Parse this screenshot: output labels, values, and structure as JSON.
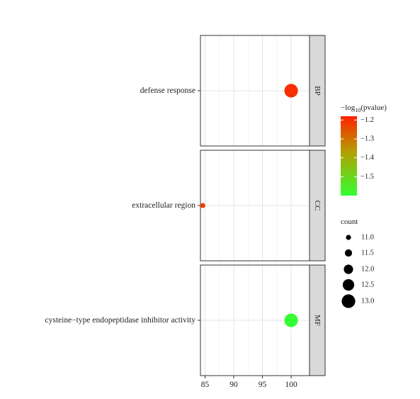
{
  "chart_data": {
    "type": "scatter",
    "title": "",
    "xlabel": "",
    "ylabel": "",
    "xlim": [
      84.2,
      103.2
    ],
    "x_ticks": [
      85,
      90,
      95,
      100
    ],
    "grid": true,
    "panels": [
      {
        "strip": "BP",
        "category": "defense response",
        "x": 100,
        "count": 13.0,
        "neg_log10_pvalue": -1.2
      },
      {
        "strip": "CC",
        "category": "extracellular region",
        "x": 84.6,
        "count": 11.0,
        "neg_log10_pvalue": -1.22
      },
      {
        "strip": "MF",
        "category": "cysteine−type endopeptidase inhibitor activity",
        "x": 100,
        "count": 13.0,
        "neg_log10_pvalue": -1.6
      }
    ],
    "legend": {
      "placement": "right",
      "color": {
        "title_prefix": "−log",
        "title_sub": "10",
        "title_suffix": "(pvalue)",
        "range": [
          -1.6,
          -1.18
        ],
        "ticks": [
          {
            "value": -1.2,
            "label": "−1.2"
          },
          {
            "value": -1.3,
            "label": "−1.3"
          },
          {
            "value": -1.4,
            "label": "−1.4"
          },
          {
            "value": -1.5,
            "label": "−1.5"
          }
        ],
        "low_color": "#33ff33",
        "mid_color": "#b3a000",
        "high_color": "#ff2200"
      },
      "size": {
        "title": "count",
        "values": [
          11.0,
          11.5,
          12.0,
          12.5,
          13.0
        ],
        "labels": [
          "11.0",
          "11.5",
          "12.0",
          "12.5",
          "13.0"
        ]
      }
    }
  }
}
